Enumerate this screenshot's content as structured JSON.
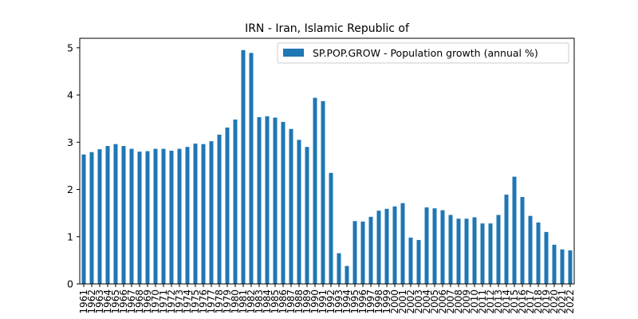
{
  "chart_data": {
    "type": "bar",
    "title": "IRN - Iran, Islamic Republic of",
    "xlabel": "",
    "ylabel": "",
    "ylim": [
      0,
      5.2
    ],
    "yticks": [
      0,
      1,
      2,
      3,
      4,
      5
    ],
    "grid": false,
    "legend_position": "top-right",
    "bar_color": "#1f77b4",
    "categories": [
      "1961",
      "1962",
      "1963",
      "1964",
      "1965",
      "1966",
      "1967",
      "1968",
      "1969",
      "1970",
      "1971",
      "1972",
      "1973",
      "1974",
      "1975",
      "1976",
      "1977",
      "1978",
      "1979",
      "1980",
      "1981",
      "1982",
      "1983",
      "1984",
      "1985",
      "1986",
      "1987",
      "1988",
      "1989",
      "1990",
      "1991",
      "1992",
      "1993",
      "1994",
      "1995",
      "1996",
      "1997",
      "1998",
      "1999",
      "2000",
      "2001",
      "2002",
      "2003",
      "2004",
      "2005",
      "2006",
      "2007",
      "2008",
      "2009",
      "2010",
      "2011",
      "2012",
      "2013",
      "2014",
      "2015",
      "2016",
      "2017",
      "2018",
      "2019",
      "2020",
      "2021",
      "2022"
    ],
    "series": [
      {
        "name": "SP.POP.GROW - Population growth (annual %)",
        "values": [
          2.74,
          2.79,
          2.85,
          2.92,
          2.96,
          2.92,
          2.86,
          2.8,
          2.81,
          2.86,
          2.86,
          2.82,
          2.86,
          2.9,
          2.97,
          2.96,
          3.02,
          3.16,
          3.31,
          3.48,
          4.95,
          4.89,
          3.53,
          3.55,
          3.52,
          3.43,
          3.28,
          3.05,
          2.9,
          3.94,
          3.87,
          2.35,
          0.65,
          0.38,
          1.33,
          1.32,
          1.42,
          1.55,
          1.59,
          1.64,
          1.71,
          0.98,
          0.93,
          1.62,
          1.6,
          1.56,
          1.46,
          1.38,
          1.38,
          1.41,
          1.28,
          1.28,
          1.46,
          1.89,
          2.27,
          1.84,
          1.44,
          1.3,
          1.1,
          0.83,
          0.73,
          0.71
        ]
      }
    ]
  }
}
